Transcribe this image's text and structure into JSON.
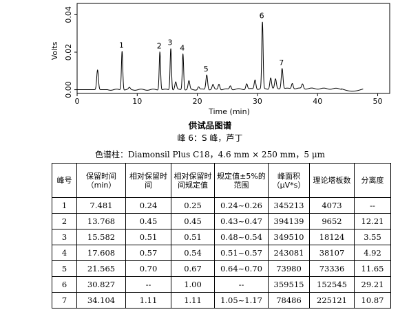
{
  "chart_data": {
    "type": "line",
    "xlabel": "Time (min)",
    "ylabel": "Volts",
    "xlim": [
      0,
      52
    ],
    "ylim": [
      -0.002,
      0.046
    ],
    "x_ticks": [
      "0",
      "10",
      "20",
      "30",
      "40",
      "50"
    ],
    "y_ticks": [
      "0.00",
      "0.02",
      "0.04"
    ],
    "grid": false,
    "baseline": 0.0,
    "peaks": [
      {
        "label": "",
        "time": 3.4,
        "height": 0.0105
      },
      {
        "label": "1",
        "time": 7.481,
        "height": 0.0208
      },
      {
        "label": "",
        "time": 8.7,
        "height": 0.001
      },
      {
        "label": "2",
        "time": 13.768,
        "height": 0.0204
      },
      {
        "label": "3",
        "time": 15.582,
        "height": 0.0222
      },
      {
        "label": "",
        "time": 16.4,
        "height": 0.004
      },
      {
        "label": "4",
        "time": 17.608,
        "height": 0.0193
      },
      {
        "label": "",
        "time": 18.6,
        "height": 0.0045
      },
      {
        "label": "",
        "time": 20.2,
        "height": 0.0015
      },
      {
        "label": "5",
        "time": 21.565,
        "height": 0.008
      },
      {
        "label": "",
        "time": 22.6,
        "height": 0.0025
      },
      {
        "label": "",
        "time": 23.6,
        "height": 0.003
      },
      {
        "label": "",
        "time": 25.5,
        "height": 0.002
      },
      {
        "label": "",
        "time": 28.2,
        "height": 0.003
      },
      {
        "label": "",
        "time": 29.6,
        "height": 0.005
      },
      {
        "label": "6",
        "time": 30.827,
        "height": 0.0355
      },
      {
        "label": "",
        "time": 32.2,
        "height": 0.006
      },
      {
        "label": "",
        "time": 33.0,
        "height": 0.005
      },
      {
        "label": "7",
        "time": 34.104,
        "height": 0.011
      },
      {
        "label": "",
        "time": 35.8,
        "height": 0.003
      },
      {
        "label": "",
        "time": 37.5,
        "height": 0.0025
      }
    ]
  },
  "captions": {
    "title": "供试品图谱",
    "peak_note": "峰 6：S 峰，芦丁",
    "column": "色谱柱：Diamonsil Plus C18，4.6 mm × 250 mm，5 μm"
  },
  "table": {
    "headers": [
      "峰号",
      "保留时间（min）",
      "相对保留时间",
      "相对保留时间规定值",
      "规定值±5%的范围",
      "峰面积（μV*s）",
      "理论塔板数",
      "分离度"
    ],
    "rows": [
      [
        "1",
        "7.481",
        "0.24",
        "0.25",
        "0.24~0.26",
        "345213",
        "4073",
        "--"
      ],
      [
        "2",
        "13.768",
        "0.45",
        "0.45",
        "0.43~0.47",
        "394139",
        "9652",
        "12.21"
      ],
      [
        "3",
        "15.582",
        "0.51",
        "0.51",
        "0.48~0.54",
        "349510",
        "18124",
        "3.55"
      ],
      [
        "4",
        "17.608",
        "0.57",
        "0.54",
        "0.51~0.57",
        "243081",
        "38107",
        "4.92"
      ],
      [
        "5",
        "21.565",
        "0.70",
        "0.67",
        "0.64~0.70",
        "73980",
        "73336",
        "11.65"
      ],
      [
        "6",
        "30.827",
        "--",
        "1.00",
        "--",
        "359515",
        "152545",
        "29.21"
      ],
      [
        "7",
        "34.104",
        "1.11",
        "1.11",
        "1.05~1.17",
        "78486",
        "225121",
        "10.87"
      ]
    ]
  }
}
